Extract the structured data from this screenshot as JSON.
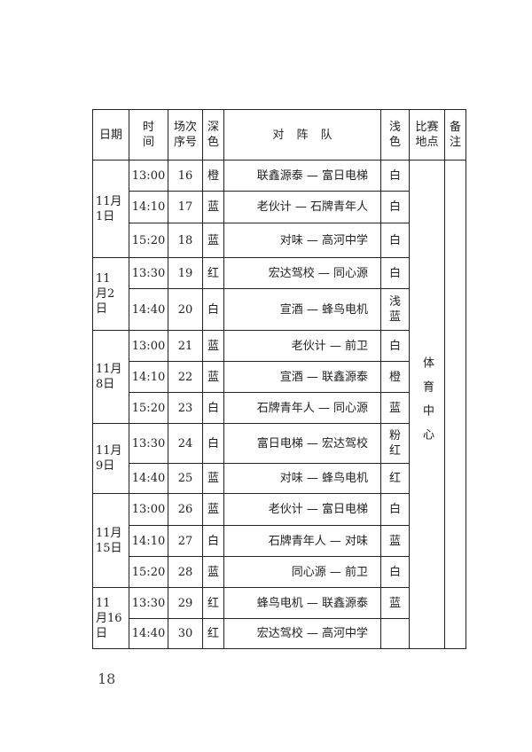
{
  "table": {
    "headers": {
      "date": "日期",
      "time": "时间",
      "match_no": "场次序号",
      "dark_color": "深色",
      "teams": "对 阵 队",
      "light_color": "浅色",
      "venue": "比赛地点",
      "notes": "备注"
    },
    "venue": "体育中心",
    "groups": [
      {
        "date": "11月1日",
        "rows": [
          {
            "time": "13:00",
            "no": "16",
            "dark": "橙",
            "teams": "联鑫源泰 — 富日电梯",
            "light": "白"
          },
          {
            "time": "14:10",
            "no": "17",
            "dark": "蓝",
            "teams": "老伙计 — 石牌青年人",
            "light": "白"
          },
          {
            "time": "15:20",
            "no": "18",
            "dark": "蓝",
            "teams": "对味 — 高河中学",
            "light": "白"
          }
        ]
      },
      {
        "date": "11 月2日",
        "rows": [
          {
            "time": "13:30",
            "no": "19",
            "dark": "红",
            "teams": "宏达驾校 — 同心源",
            "light": "白"
          },
          {
            "time": "14:40",
            "no": "20",
            "dark": "白",
            "teams": "宣酒 — 蜂鸟电机",
            "light": "浅蓝"
          }
        ]
      },
      {
        "date": "11月8日",
        "rows": [
          {
            "time": "13:00",
            "no": "21",
            "dark": "蓝",
            "teams": "老伙计 — 前卫",
            "light": "白"
          },
          {
            "time": "14:10",
            "no": "22",
            "dark": "蓝",
            "teams": "宣酒 — 联鑫源泰",
            "light": "橙"
          },
          {
            "time": "15:20",
            "no": "23",
            "dark": "白",
            "teams": "石牌青年人 — 同心源",
            "light": "蓝"
          }
        ]
      },
      {
        "date": "11月9日",
        "rows": [
          {
            "time": "13:30",
            "no": "24",
            "dark": "白",
            "teams": "富日电梯 — 宏达驾校",
            "light": "粉红"
          },
          {
            "time": "14:40",
            "no": "25",
            "dark": "蓝",
            "teams": "对味 — 蜂鸟电机",
            "light": "红"
          }
        ]
      },
      {
        "date": "11月15日",
        "rows": [
          {
            "time": "13:00",
            "no": "26",
            "dark": "蓝",
            "teams": "老伙计 — 富日电梯",
            "light": "白"
          },
          {
            "time": "14:10",
            "no": "27",
            "dark": "白",
            "teams": "石牌青年人 — 对味",
            "light": "蓝"
          },
          {
            "time": "15:20",
            "no": "28",
            "dark": "蓝",
            "teams": "同心源 — 前卫",
            "light": "白"
          }
        ]
      },
      {
        "date": "11 月16日",
        "rows": [
          {
            "time": "13:30",
            "no": "29",
            "dark": "红",
            "teams": "蜂鸟电机 — 联鑫源泰",
            "light": "蓝"
          },
          {
            "time": "14:40",
            "no": "30",
            "dark": "红",
            "teams": "宏达驾校 — 高河中学",
            "light": ""
          }
        ]
      }
    ]
  },
  "page_number": "18"
}
